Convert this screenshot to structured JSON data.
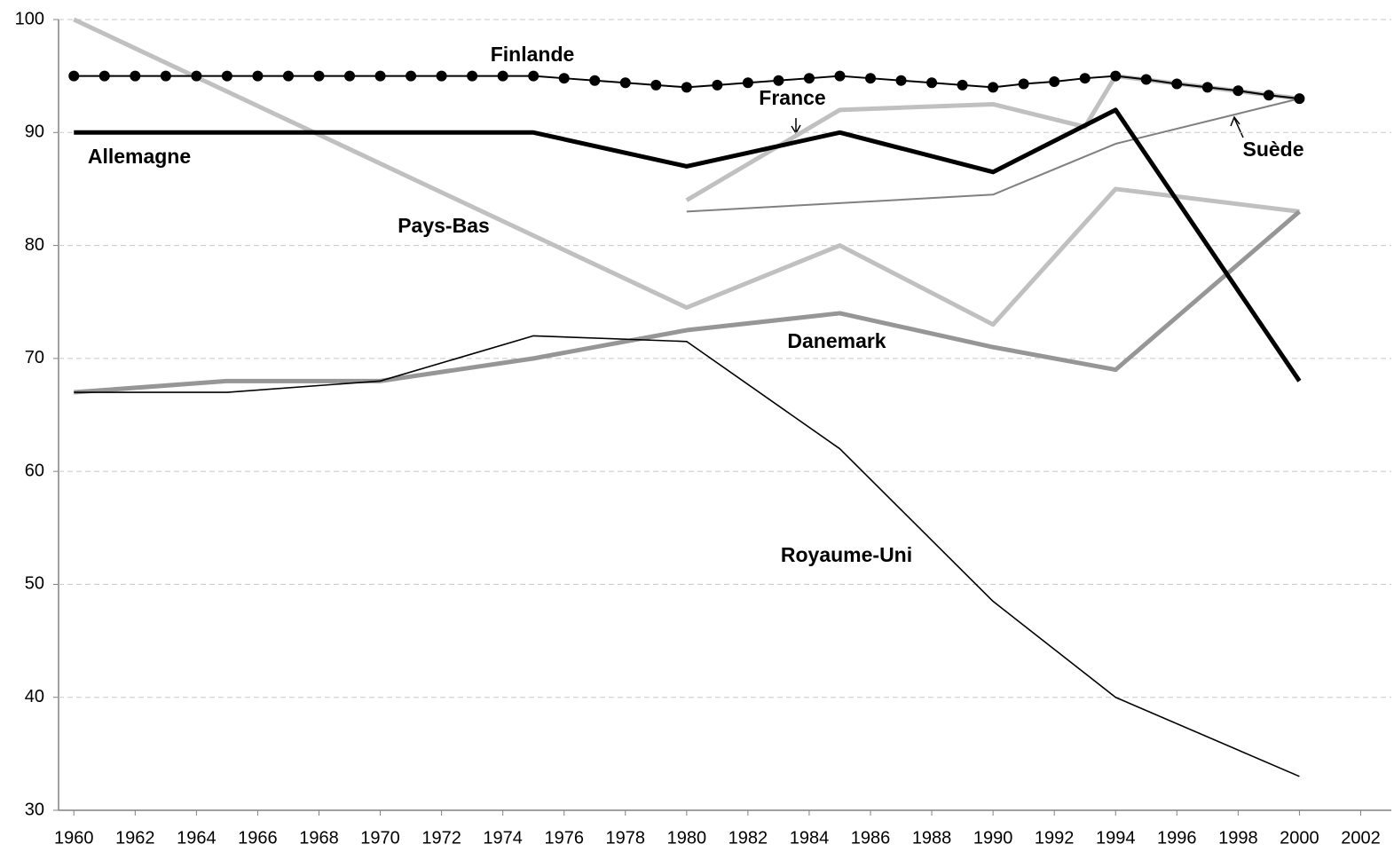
{
  "chart_data": {
    "type": "line",
    "xlim": [
      1959.5,
      2003
    ],
    "xticks": [
      1960,
      1962,
      1964,
      1966,
      1968,
      1970,
      1972,
      1974,
      1976,
      1978,
      1980,
      1982,
      1984,
      1986,
      1988,
      1990,
      1992,
      1994,
      1996,
      1998,
      2000,
      2002
    ],
    "ylim": [
      30,
      100
    ],
    "yticks": [
      30,
      40,
      50,
      60,
      70,
      80,
      90,
      100
    ],
    "grid": true,
    "series": [
      {
        "name": "Finlande",
        "color": "#000000",
        "marker": "circle",
        "x": [
          1960,
          1961,
          1962,
          1963,
          1964,
          1965,
          1966,
          1967,
          1968,
          1969,
          1970,
          1971,
          1972,
          1973,
          1974,
          1975,
          1976,
          1977,
          1978,
          1979,
          1980,
          1981,
          1982,
          1983,
          1984,
          1985,
          1986,
          1987,
          1988,
          1989,
          1990,
          1991,
          1992,
          1993,
          1994,
          1995,
          1996,
          1997,
          1998,
          1999,
          2000
        ],
        "values": [
          95,
          95,
          95,
          95,
          95,
          95,
          95,
          95,
          95,
          95,
          95,
          95,
          95,
          95,
          95,
          95,
          94.8,
          94.6,
          94.4,
          94.2,
          94,
          94.2,
          94.4,
          94.6,
          94.8,
          95,
          94.8,
          94.6,
          94.4,
          94.2,
          94,
          94.3,
          94.5,
          94.8,
          95,
          94.7,
          94.3,
          94,
          93.7,
          93.3,
          93
        ]
      },
      {
        "name": "Allemagne",
        "color": "#000000",
        "x": [
          1960,
          1975,
          1980,
          1985,
          1990,
          1994,
          2000
        ],
        "values": [
          90,
          90,
          87,
          90,
          86.5,
          92,
          68
        ]
      },
      {
        "name": "Pays-Bas",
        "color": "#c0c0c0",
        "x": [
          1960,
          1980,
          1985,
          1990,
          1994,
          2000
        ],
        "values": [
          100,
          74.5,
          80,
          73,
          85,
          83
        ]
      },
      {
        "name": "France",
        "color": "#c0c0c0",
        "x": [
          1980,
          1985,
          1990,
          1993,
          1994,
          2000
        ],
        "values": [
          84,
          92,
          92.5,
          90.5,
          95,
          93
        ]
      },
      {
        "name": "Suède",
        "color": "#808080",
        "x": [
          1980,
          1990,
          1994,
          2000
        ],
        "values": [
          83,
          84.5,
          89,
          93
        ]
      },
      {
        "name": "Danemark",
        "color": "#969696",
        "x": [
          1960,
          1965,
          1970,
          1975,
          1980,
          1985,
          1990,
          1994,
          2000
        ],
        "values": [
          67,
          68,
          68,
          70,
          72.5,
          74,
          71,
          69,
          83
        ]
      },
      {
        "name": "Royaume-Uni",
        "color": "#000000",
        "x": [
          1960,
          1965,
          1970,
          1975,
          1980,
          1985,
          1990,
          1994,
          2000
        ],
        "values": [
          67,
          67,
          68,
          72,
          71.5,
          62,
          48.5,
          40,
          33
        ]
      }
    ]
  }
}
